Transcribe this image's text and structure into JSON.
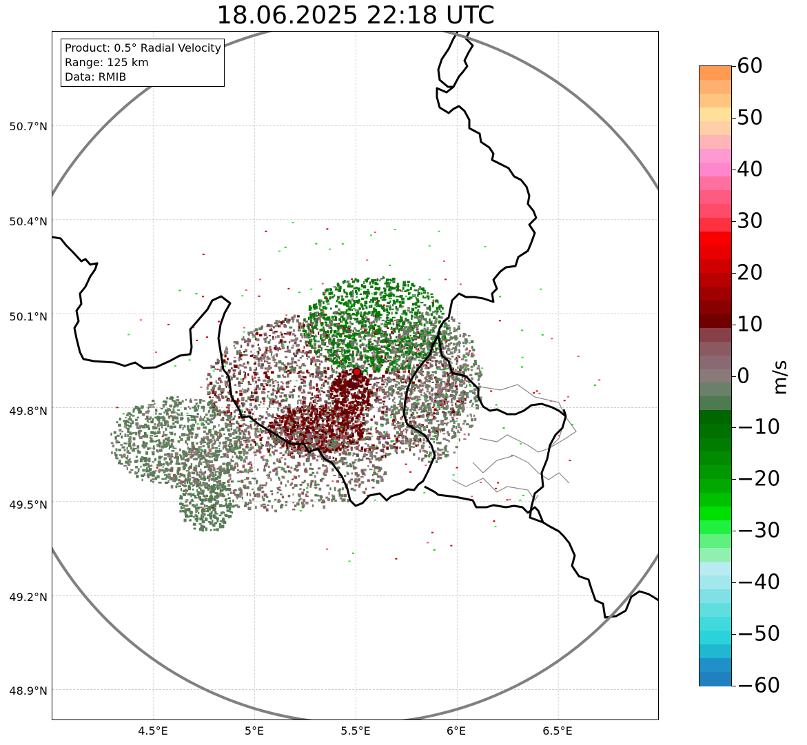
{
  "title": "18.06.2025 22:18 UTC",
  "info_box": {
    "product": "Product: 0.5° Radial Velocity",
    "range": "Range: 125 km",
    "data": "Data: RMIB"
  },
  "y_axis_labels": [
    "50.7°N",
    "50.4°N",
    "50.1°N",
    "49.8°N",
    "49.5°N",
    "49.2°N",
    "48.9°N"
  ],
  "x_axis_labels": [
    "4.5°E",
    "5°E",
    "5.5°E",
    "6°E",
    "6.5°E"
  ],
  "colorbar": {
    "label": "m/s",
    "ticks": [
      "60",
      "50",
      "40",
      "30",
      "20",
      "10",
      "0",
      "−10",
      "−20",
      "−30",
      "−40",
      "−50",
      "−60"
    ],
    "colors": [
      "#ff9a50",
      "#ffb070",
      "#ffc580",
      "#ffe09a",
      "#ffd0a8",
      "#ffb4b8",
      "#ff9ad0",
      "#ff86cc",
      "#ff70a0",
      "#ff5a80",
      "#ff4a6a",
      "#ff3040",
      "#f80000",
      "#e80000",
      "#d00000",
      "#b80000",
      "#a00000",
      "#880000",
      "#700000",
      "#884048",
      "#8a5a60",
      "#8a6a72",
      "#8a7a7a",
      "#6a8068",
      "#4e7a50",
      "#006600",
      "#007000",
      "#007d00",
      "#008a00",
      "#009800",
      "#00a800",
      "#00c000",
      "#00e000",
      "#20f040",
      "#60f080",
      "#90f0b0",
      "#b8ecf0",
      "#a0e8ec",
      "#80e0e6",
      "#60dede",
      "#40dadc",
      "#28d4da",
      "#20b8d0",
      "#2090c8",
      "#2080c0"
    ],
    "range": [
      -60,
      60
    ]
  },
  "map": {
    "region": "Belgium / Luxembourg radar coverage",
    "radar_site": {
      "lon": 5.505,
      "lat": 49.914
    },
    "extent": {
      "lon": [
        4.0,
        7.0
      ],
      "lat": [
        48.8,
        51.0
      ]
    },
    "colors": {
      "approaching": "#008000",
      "receding": "#7a0000",
      "near_zero": "#8a7a78",
      "zero_green": "#5e7e5a",
      "range_ring": "#808080",
      "border": "#000000"
    }
  }
}
